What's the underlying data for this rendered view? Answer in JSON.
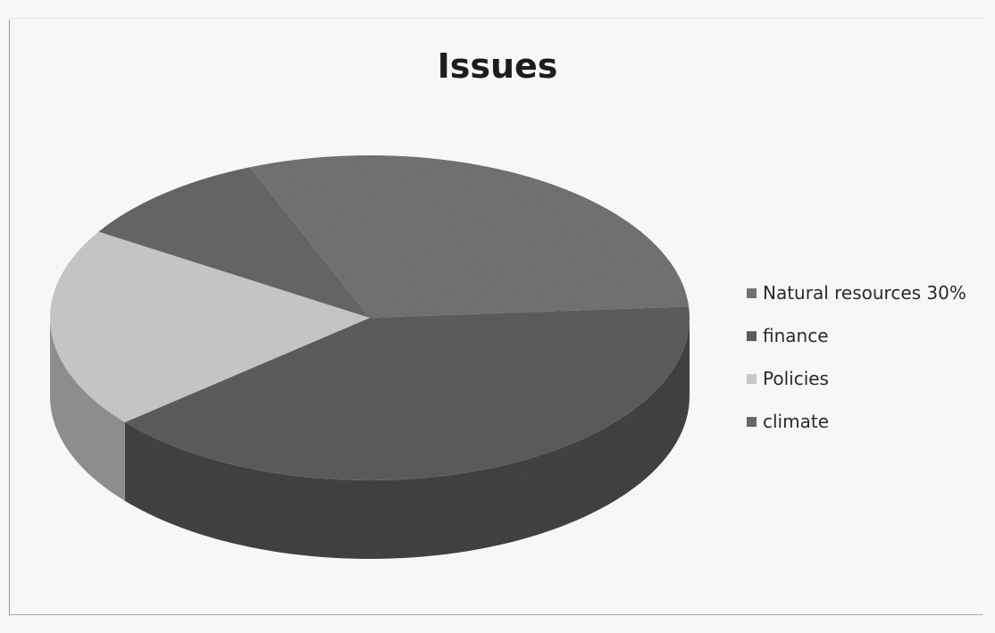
{
  "chart_data": {
    "type": "pie",
    "title": "Issues",
    "categories": [
      "Natural resources 30%",
      "finance",
      "Policies",
      "climate"
    ],
    "values": [
      30,
      40,
      20,
      10
    ],
    "colors": [
      "#727272",
      "#5c5c5c",
      "#c8c8c8",
      "#666666"
    ],
    "legend_position": "right",
    "style": "3d"
  }
}
